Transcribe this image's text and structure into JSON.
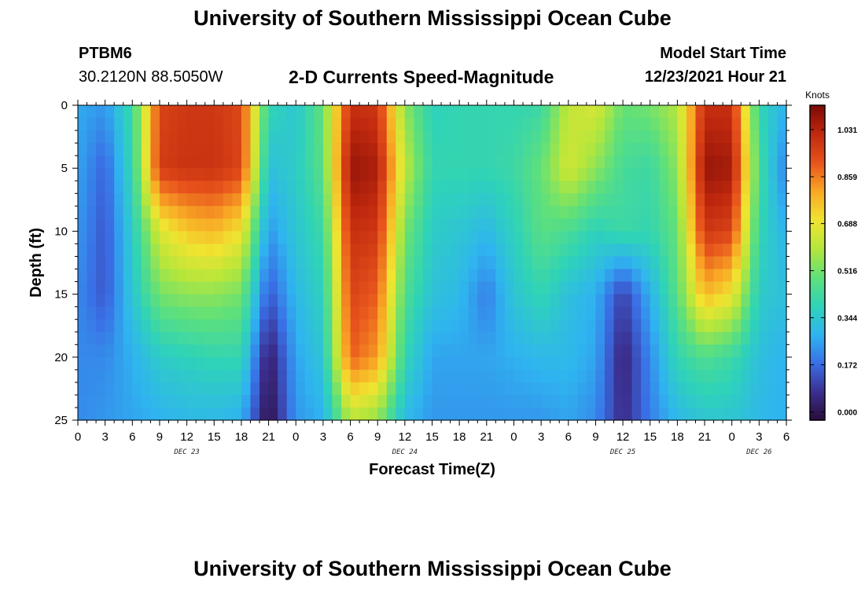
{
  "header": {
    "title": "University of Southern Mississippi Ocean Cube",
    "station": "PTBM6",
    "coords": "30.2120N  88.5050W",
    "plot_title": "2-D Currents Speed-Magnitude",
    "model_label": "Model Start Time",
    "model_time": "12/23/2021 Hour 21"
  },
  "footer": {
    "title": "University of Southern Mississippi Ocean Cube"
  },
  "colors": {
    "stops": [
      "#2a0c3a",
      "#3b2f8f",
      "#3a6fe6",
      "#2fb4f0",
      "#2fd3b8",
      "#5fe07a",
      "#b4e63c",
      "#f0e430",
      "#f9a825",
      "#e8541c",
      "#c0290e",
      "#7d0a06"
    ]
  },
  "chart_data": {
    "type": "heatmap",
    "title": "2-D Currents Speed-Magnitude",
    "xlabel": "Forecast Time(Z)",
    "ylabel": "Depth (ft)",
    "x_tick_labels": [
      "0",
      "3",
      "6",
      "9",
      "12",
      "15",
      "18",
      "21",
      "0",
      "3",
      "6",
      "9",
      "12",
      "15",
      "18",
      "21",
      "0",
      "3",
      "6",
      "9",
      "12",
      "15",
      "18",
      "21",
      "0",
      "3",
      "6"
    ],
    "date_labels": [
      {
        "text": "DEC 23",
        "hour": 12
      },
      {
        "text": "DEC 24",
        "hour": 36
      },
      {
        "text": "DEC 25",
        "hour": 60
      },
      {
        "text": "DEC 26",
        "hour": 75
      }
    ],
    "x_range_hours": [
      0,
      78
    ],
    "y_ticks": [
      0,
      5,
      10,
      15,
      20,
      25
    ],
    "ylim": [
      0,
      25
    ],
    "colorbar": {
      "label": "Knots",
      "range": [
        -0.03,
        1.12
      ],
      "ticks": [
        "1.031",
        "0.859",
        "0.688",
        "0.516",
        "0.344",
        "0.172",
        "0.000"
      ]
    },
    "hours": [
      0,
      3,
      6,
      9,
      12,
      15,
      18,
      21,
      24,
      27,
      30,
      33,
      36,
      39,
      42,
      45,
      48,
      51,
      54,
      57,
      60,
      63,
      66,
      69,
      72,
      75,
      78
    ],
    "depths": [
      0,
      5,
      10,
      15,
      20,
      25
    ],
    "speed_knots": [
      [
        0.27,
        0.24,
        0.42,
        0.95,
        0.98,
        0.98,
        0.94,
        0.4,
        0.34,
        0.5,
        1.0,
        0.98,
        0.55,
        0.38,
        0.4,
        0.4,
        0.4,
        0.42,
        0.62,
        0.66,
        0.5,
        0.52,
        0.6,
        1.0,
        1.0,
        0.4,
        0.28
      ],
      [
        0.26,
        0.16,
        0.4,
        0.97,
        0.99,
        0.99,
        0.95,
        0.32,
        0.36,
        0.48,
        1.08,
        1.05,
        0.62,
        0.4,
        0.4,
        0.4,
        0.42,
        0.5,
        0.65,
        0.55,
        0.44,
        0.42,
        0.55,
        1.08,
        1.06,
        0.44,
        0.2
      ],
      [
        0.24,
        0.14,
        0.36,
        0.66,
        0.75,
        0.78,
        0.7,
        0.24,
        0.34,
        0.42,
        1.0,
        0.98,
        0.52,
        0.36,
        0.34,
        0.3,
        0.38,
        0.48,
        0.45,
        0.38,
        0.42,
        0.4,
        0.5,
        0.98,
        0.95,
        0.4,
        0.28
      ],
      [
        0.22,
        0.14,
        0.34,
        0.52,
        0.55,
        0.55,
        0.52,
        0.14,
        0.3,
        0.38,
        0.95,
        0.9,
        0.46,
        0.33,
        0.3,
        0.2,
        0.34,
        0.4,
        0.32,
        0.28,
        0.1,
        0.28,
        0.48,
        0.78,
        0.7,
        0.36,
        0.32
      ],
      [
        0.22,
        0.22,
        0.28,
        0.36,
        0.38,
        0.4,
        0.4,
        0.02,
        0.26,
        0.34,
        0.9,
        0.82,
        0.4,
        0.26,
        0.26,
        0.26,
        0.28,
        0.3,
        0.3,
        0.26,
        0.04,
        0.22,
        0.4,
        0.46,
        0.42,
        0.32,
        0.28
      ],
      [
        0.22,
        0.24,
        0.26,
        0.28,
        0.3,
        0.3,
        0.28,
        -0.02,
        0.24,
        0.28,
        0.6,
        0.55,
        0.3,
        0.24,
        0.24,
        0.24,
        0.24,
        0.24,
        0.26,
        0.22,
        0.06,
        0.2,
        0.3,
        0.34,
        0.34,
        0.3,
        0.28
      ]
    ]
  }
}
